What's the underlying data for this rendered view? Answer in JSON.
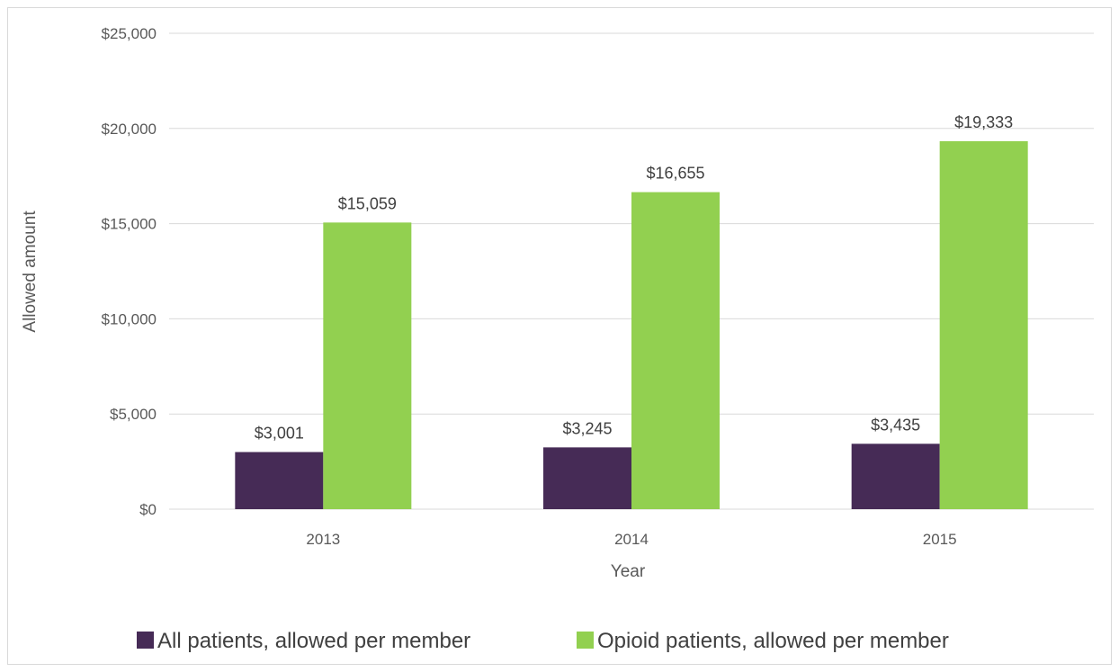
{
  "chart_data": {
    "type": "bar",
    "title": "",
    "xlabel": "Year",
    "ylabel": "Allowed amount",
    "categories": [
      "2013",
      "2014",
      "2015"
    ],
    "series": [
      {
        "name": "All patients, allowed per member",
        "values": [
          3001,
          3245,
          3435
        ],
        "labels": [
          "$3,001",
          "$3,245",
          "$3,435"
        ],
        "color": "#462b56"
      },
      {
        "name": "Opioid patients, allowed per member",
        "values": [
          15059,
          16655,
          19333
        ],
        "labels": [
          "$15,059",
          "$16,655",
          "$19,333"
        ],
        "color": "#92d050"
      }
    ],
    "ylim": [
      0,
      25000
    ],
    "yticks": [
      0,
      5000,
      10000,
      15000,
      20000,
      25000
    ],
    "ytick_labels": [
      "$0",
      "$5,000",
      "$10,000",
      "$15,000",
      "$20,000",
      "$25,000"
    ],
    "grid": true,
    "gridline_color": "#d9d9d9",
    "legend_position": "bottom"
  }
}
